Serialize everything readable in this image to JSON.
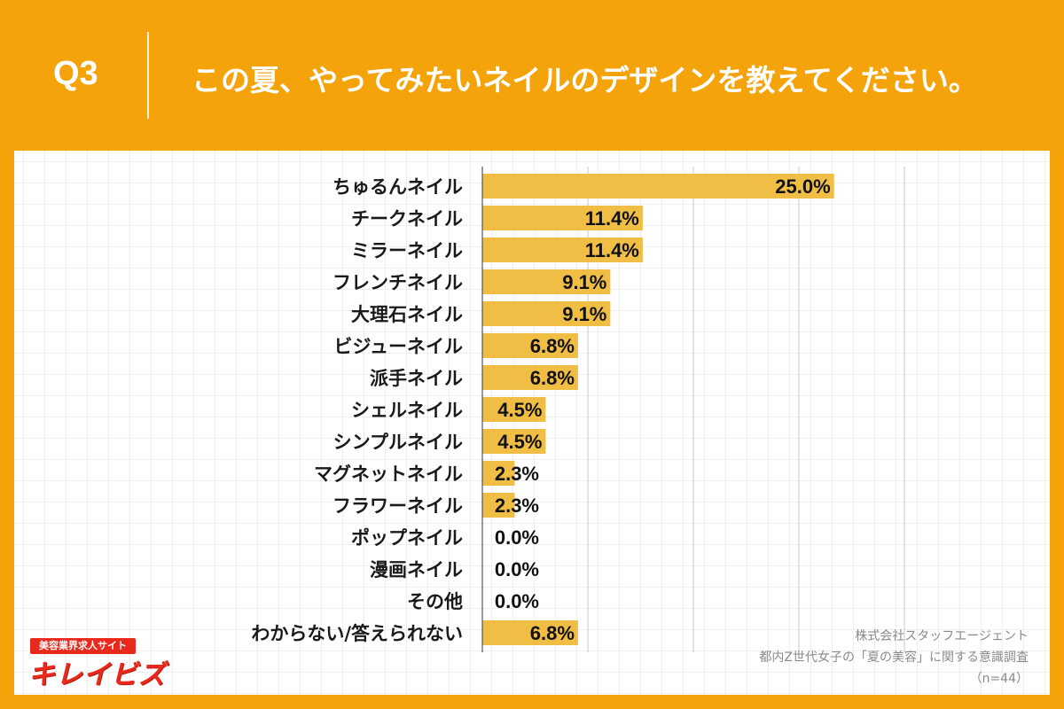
{
  "header": {
    "q_label": "Q3",
    "question": "この夏、やってみたいネイルのデザインを教えてください。"
  },
  "logo": {
    "tagline": "美容業界求人サイト",
    "name": "キレイビズ"
  },
  "source": {
    "company": "株式会社スタッフエージェント",
    "survey": "都内Z世代女子の「夏の美容」に関する意識調査",
    "sample": "（n=44）"
  },
  "colors": {
    "background": "#f5a30b",
    "bar": "#f0bd45",
    "panel": "#ffffff",
    "logo": "#e8291c"
  },
  "chart_data": {
    "type": "bar",
    "orientation": "horizontal",
    "categories": [
      "ちゅるんネイル",
      "チークネイル",
      "ミラーネイル",
      "フレンチネイル",
      "大理石ネイル",
      "ビジューネイル",
      "派手ネイル",
      "シェルネイル",
      "シンプルネイル",
      "マグネットネイル",
      "フラワーネイル",
      "ポップネイル",
      "漫画ネイル",
      "その他",
      "わからない/答えられない"
    ],
    "values": [
      25.0,
      11.4,
      11.4,
      9.1,
      9.1,
      6.8,
      6.8,
      4.5,
      4.5,
      2.3,
      2.3,
      0.0,
      0.0,
      0.0,
      6.8
    ],
    "value_labels": [
      "25.0%",
      "11.4%",
      "11.4%",
      "9.1%",
      "9.1%",
      "6.8%",
      "6.8%",
      "4.5%",
      "4.5%",
      "2.3%",
      "2.3%",
      "0.0%",
      "0.0%",
      "0.0%",
      "6.8%"
    ],
    "xlim": [
      0,
      30
    ],
    "gridlines": [
      7.5,
      15,
      22.5,
      30
    ],
    "grid": true
  }
}
